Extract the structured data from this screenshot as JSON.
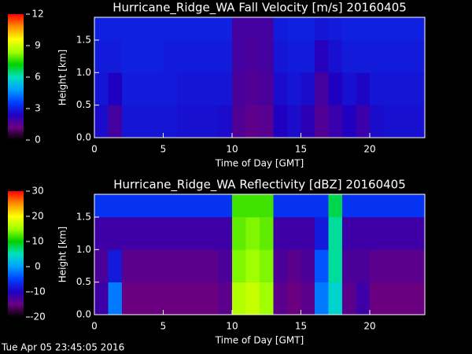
{
  "chart_data": [
    {
      "type": "heatmap",
      "title": "Hurricane_Ridge_WA Fall Velocity [m/s] 20160405",
      "x_label": "Time of Day [GMT]",
      "y_label": "Height [km]",
      "x_bins": [
        0,
        1,
        2,
        3,
        4,
        5,
        6,
        7,
        8,
        9,
        10,
        11,
        12,
        13,
        14,
        15,
        16,
        17,
        18,
        19,
        20,
        21,
        22,
        23,
        24
      ],
      "y_bins": [
        0,
        0.5,
        1,
        1.5,
        1.85
      ],
      "values": [
        [
          2.6,
          1.8,
          2.8,
          2.8,
          2.8,
          2.8,
          2.7,
          2.7,
          2.7,
          2.6,
          1.6,
          1.4,
          1.5,
          2.4,
          2.6,
          2.2,
          1.6,
          2.0,
          2.4,
          2.0,
          2.6,
          2.7,
          2.7,
          2.7
        ],
        [
          2.8,
          2.4,
          2.9,
          2.9,
          2.9,
          2.9,
          2.8,
          2.8,
          2.8,
          2.8,
          1.7,
          1.6,
          1.7,
          2.6,
          2.8,
          2.6,
          1.8,
          2.4,
          2.7,
          2.5,
          2.8,
          2.8,
          2.8,
          2.8
        ],
        [
          2.9,
          2.9,
          3.0,
          3.0,
          3.0,
          2.9,
          2.9,
          2.9,
          2.9,
          2.9,
          1.8,
          1.7,
          1.8,
          2.8,
          2.9,
          2.9,
          2.3,
          2.7,
          2.9,
          2.9,
          2.9,
          2.9,
          2.9,
          2.9
        ],
        [
          3.0,
          3.0,
          3.0,
          3.0,
          3.0,
          3.0,
          3.0,
          3.0,
          3.0,
          3.0,
          1.8,
          1.8,
          1.8,
          2.9,
          3.0,
          3.0,
          2.8,
          2.9,
          3.0,
          3.0,
          3.0,
          3.0,
          3.0,
          3.0
        ]
      ],
      "xlim": [
        0,
        24
      ],
      "xticks": [
        0,
        5,
        10,
        15,
        20
      ],
      "ylim": [
        0,
        1.85
      ],
      "yticks": [
        {
          "value": 0,
          "label": "0.0"
        },
        {
          "value": 0.5,
          "label": "0.5"
        },
        {
          "value": 1,
          "label": "1.0"
        },
        {
          "value": 1.5,
          "label": "1.5"
        }
      ],
      "zlim": [
        0,
        12
      ],
      "zticks": [
        0,
        3,
        6,
        9,
        12
      ],
      "colorscale": [
        "#000000",
        "#6a0080",
        "#2000c0",
        "#0040ff",
        "#00a0ff",
        "#00e0c0",
        "#00d000",
        "#a0ff00",
        "#ffff00",
        "#ff9000",
        "#ff0000"
      ]
    },
    {
      "type": "heatmap",
      "title": "Hurricane_Ridge_WA Reflectivity [dBZ] 20160405",
      "x_label": "Time of Day [GMT]",
      "y_label": "Height [km]",
      "x_bins": [
        0,
        1,
        2,
        3,
        4,
        5,
        6,
        7,
        8,
        9,
        10,
        11,
        12,
        13,
        14,
        15,
        16,
        17,
        18,
        19,
        20,
        21,
        22,
        23,
        24
      ],
      "y_bins": [
        0,
        0.5,
        1,
        1.5,
        1.85
      ],
      "values": [
        [
          -12,
          -2,
          -15,
          -15,
          -15,
          -15,
          -15,
          -15,
          -15,
          -14,
          16,
          17,
          15,
          -14,
          -15,
          -14,
          -2,
          4,
          -14,
          -12,
          -15,
          -15,
          -15,
          -15
        ],
        [
          -13,
          -8,
          -14,
          -14,
          -14,
          -14,
          -14,
          -14,
          -14,
          -13,
          14,
          15,
          14,
          -13,
          -14,
          -13,
          -4,
          6,
          -13,
          -13,
          -14,
          -14,
          -14,
          -14
        ],
        [
          -12,
          -12,
          -12,
          -12,
          -12,
          -12,
          -12,
          -12,
          -12,
          -12,
          13,
          14,
          13,
          -12,
          -12,
          -12,
          -8,
          6,
          -12,
          -12,
          -12,
          -12,
          -12,
          -12
        ],
        [
          -6,
          -6,
          -6,
          -6,
          -6,
          -6,
          -6,
          -6,
          -6,
          -6,
          12,
          12,
          12,
          -6,
          -6,
          -6,
          -6,
          8,
          -6,
          -6,
          -6,
          -6,
          -6,
          -6
        ]
      ],
      "xlim": [
        0,
        24
      ],
      "xticks": [
        0,
        5,
        10,
        15,
        20
      ],
      "ylim": [
        0,
        1.85
      ],
      "yticks": [
        {
          "value": 0,
          "label": "0.0"
        },
        {
          "value": 0.5,
          "label": "0.5"
        },
        {
          "value": 1,
          "label": "1.0"
        },
        {
          "value": 1.5,
          "label": "1.5"
        }
      ],
      "zlim": [
        -20,
        30
      ],
      "zticks": [
        -20,
        -10,
        0,
        10,
        20,
        30
      ],
      "colorscale": [
        "#000000",
        "#6a0080",
        "#2000c0",
        "#0040ff",
        "#00a0ff",
        "#00e0c0",
        "#00d000",
        "#a0ff00",
        "#ffff00",
        "#ff9000",
        "#ff0000"
      ]
    }
  ],
  "footer": "Tue Apr 05 23:45:05 2016"
}
